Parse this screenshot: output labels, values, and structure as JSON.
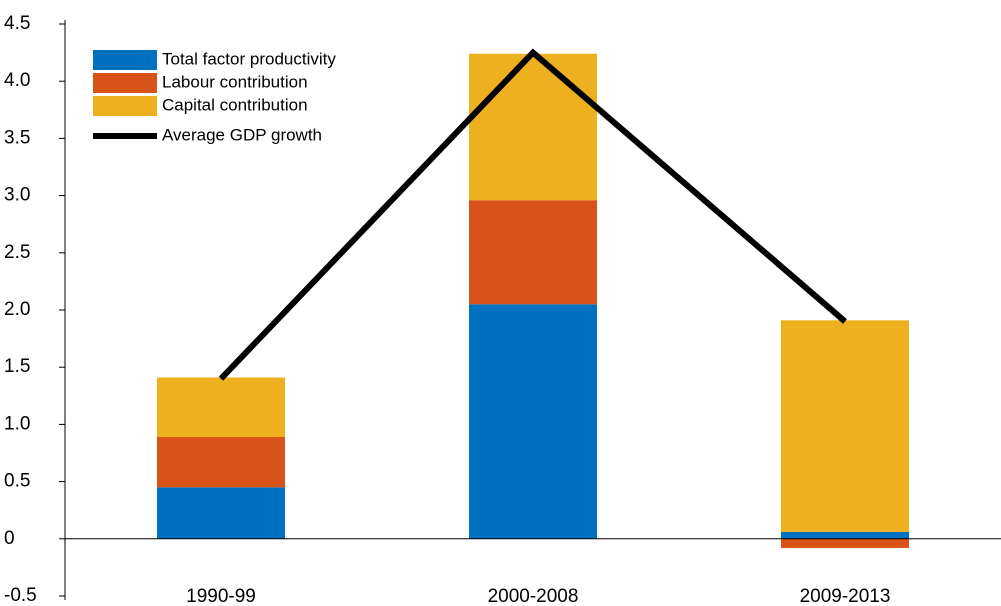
{
  "chart_data": {
    "type": "bar",
    "stacked": true,
    "categories": [
      "1990-99",
      "2000-2008",
      "2009-2013"
    ],
    "series": [
      {
        "name": "Total factor productivity",
        "type": "bar",
        "color": "#0070c0",
        "values": [
          0.45,
          2.05,
          0.06
        ]
      },
      {
        "name": "Labour contribution",
        "type": "bar",
        "color": "#d95319",
        "values": [
          0.44,
          0.91,
          -0.08
        ]
      },
      {
        "name": "Capital contribution",
        "type": "bar",
        "color": "#edb120",
        "values": [
          0.52,
          1.28,
          1.85
        ]
      },
      {
        "name": "Average GDP growth",
        "type": "line",
        "color": "#000000",
        "values": [
          1.4,
          4.25,
          1.9
        ]
      }
    ],
    "ylim": [
      -0.5,
      4.5
    ],
    "yticks": [
      -0.5,
      0,
      0.5,
      {
        "value": 1,
        "label": "1.0"
      },
      1.5,
      {
        "value": 2,
        "label": "2.0"
      },
      2.5,
      {
        "value": 3,
        "label": "3.0"
      },
      3.5,
      {
        "value": 4,
        "label": "4.0"
      },
      4.5
    ],
    "grid": false,
    "legend": "upper left"
  }
}
